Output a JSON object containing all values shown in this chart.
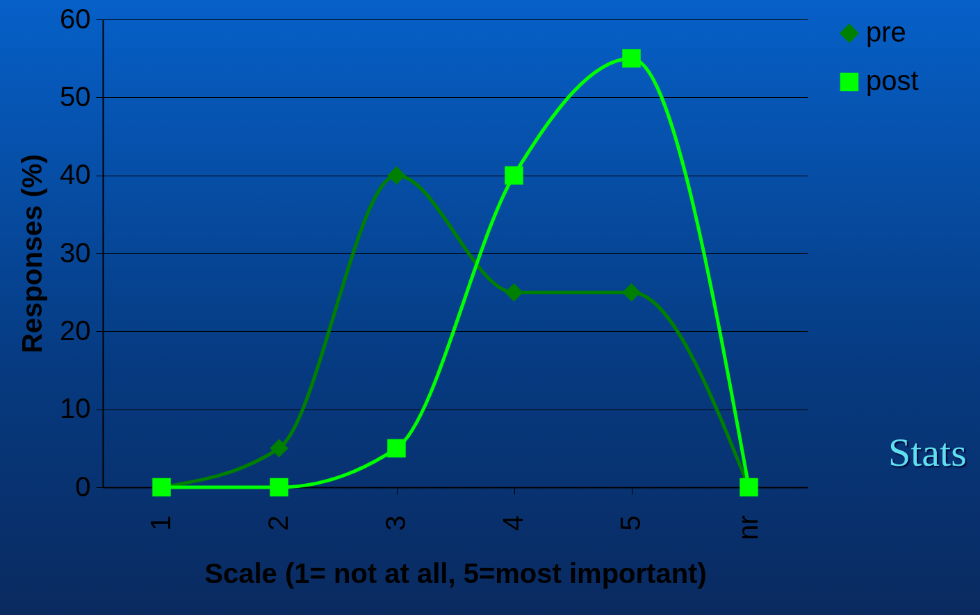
{
  "chart_data": {
    "type": "line",
    "xlabel": "Scale (1= not at all, 5=most important)",
    "ylabel": "Responses (%)",
    "categories": [
      "1",
      "2",
      "3",
      "4",
      "5",
      "nr"
    ],
    "series": [
      {
        "name": "pre",
        "color": "#008000",
        "marker": "diamond",
        "values": [
          0,
          5,
          40,
          25,
          25,
          0
        ]
      },
      {
        "name": "post",
        "color": "#00ff00",
        "marker": "square",
        "values": [
          0,
          0,
          5,
          40,
          55,
          0
        ]
      }
    ],
    "ylim": [
      0,
      60
    ],
    "yticks": [
      0,
      10,
      20,
      30,
      40,
      50,
      60
    ],
    "grid": "y",
    "legend": "right",
    "annotations": [
      "Stats"
    ]
  }
}
